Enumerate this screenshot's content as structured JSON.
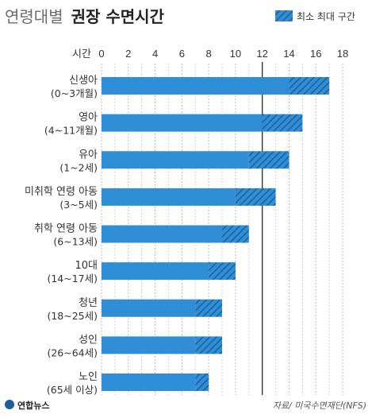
{
  "title_light": "연령대별",
  "title_bold": "권장 수면시간",
  "legend_label": "최소 최대 구간",
  "source": "자료/ 미국수면재단(NFS)",
  "logo_text": "연합뉴스",
  "colors": {
    "bar": "#2f8ed6",
    "hatch": "#1d5f9c",
    "grid": "#b5b5b5",
    "ref_line": "#333333"
  },
  "chart_data": {
    "type": "bar",
    "orientation": "horizontal",
    "title": "연령대별 권장 수면시간",
    "x_unit_label": "시간",
    "xlim": [
      0,
      18
    ],
    "ticks": [
      0,
      2,
      4,
      6,
      8,
      10,
      12,
      14,
      16,
      18
    ],
    "grid": true,
    "reference_line": 12,
    "legend": {
      "label": "최소 최대 구간",
      "position": "top-right"
    },
    "categories": [
      {
        "name": "신생아",
        "range": "(0~3개월)",
        "min": 14,
        "max": 17
      },
      {
        "name": "영아",
        "range": "(4~11개월)",
        "min": 12,
        "max": 15
      },
      {
        "name": "유아",
        "range": "(1~2세)",
        "min": 11,
        "max": 14
      },
      {
        "name": "미취학 연령 아동",
        "range": "(3~5세)",
        "min": 10,
        "max": 13
      },
      {
        "name": "취학 연령 아동",
        "range": "(6~13세)",
        "min": 9,
        "max": 11
      },
      {
        "name": "10대",
        "range": "(14~17세)",
        "min": 8,
        "max": 10
      },
      {
        "name": "청년",
        "range": "(18~25세)",
        "min": 7,
        "max": 9
      },
      {
        "name": "성인",
        "range": "(26~64세)",
        "min": 7,
        "max": 9
      },
      {
        "name": "노인",
        "range": "(65세 이상)",
        "min": 7,
        "max": 8
      }
    ]
  }
}
